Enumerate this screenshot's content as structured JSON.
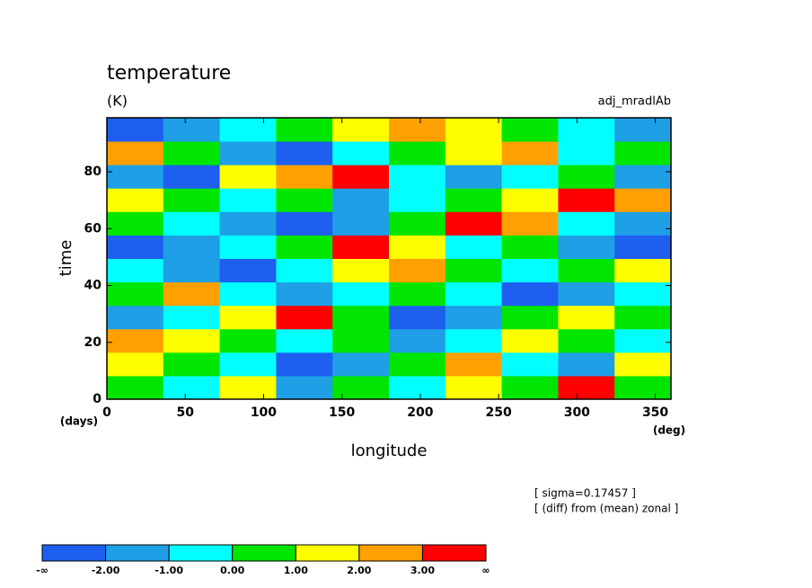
{
  "chart_data": {
    "type": "heatmap",
    "title": "temperature",
    "subtitle": "(K)",
    "annotation": "adj_mradlAb",
    "x_label": "longitude",
    "y_label": "time",
    "x_unit": "(deg)",
    "y_unit": "(days)",
    "notes": [
      "[ sigma=0.17457 ]",
      "[ (diff) from (mean) zonal ]"
    ],
    "xlim": [
      0,
      360
    ],
    "xticks": [
      0,
      50,
      100,
      150,
      200,
      250,
      300,
      350
    ],
    "ylim": [
      0,
      99
    ],
    "yticks": [
      0,
      20,
      40,
      60,
      80
    ],
    "colorbar": {
      "levels": [
        {
          "value": -2,
          "label": "-2.00"
        },
        {
          "value": -1,
          "label": "-1.00"
        },
        {
          "value": 0,
          "label": "0.00"
        },
        {
          "value": 1,
          "label": "1.00"
        },
        {
          "value": 2,
          "label": "2.00"
        },
        {
          "value": 3,
          "label": "3.00"
        }
      ],
      "edge_labels": [
        "-∞",
        "∞"
      ],
      "colors": [
        "#1e5ff0",
        "#1e9fe6",
        "#00ffff",
        "#00e600",
        "#ffff00",
        "#ffa000",
        "#ff0000"
      ]
    },
    "z": [
      [
        0.5,
        -0.5,
        1.5,
        -1.5,
        0.5,
        -0.5,
        1.5,
        0.5,
        3.5,
        0.5
      ],
      [
        1.5,
        0.5,
        -0.5,
        -2.5,
        -1.5,
        0.5,
        2.5,
        -0.5,
        -1.5,
        1.5
      ],
      [
        2.5,
        1.5,
        0.5,
        -0.5,
        0.5,
        -1.5,
        -0.5,
        1.5,
        0.5,
        -0.5
      ],
      [
        -1.5,
        -0.5,
        1.5,
        3.5,
        0.5,
        -2.5,
        -1.5,
        0.5,
        1.5,
        0.5
      ],
      [
        0.5,
        2.5,
        -0.5,
        -1.5,
        -0.5,
        0.5,
        -0.5,
        -2.5,
        -1.5,
        -0.5
      ],
      [
        -0.5,
        -1.5,
        -2.5,
        -0.5,
        1.5,
        2.5,
        0.5,
        -0.5,
        0.5,
        1.5
      ],
      [
        -2.5,
        -1.5,
        -0.5,
        0.5,
        3.5,
        1.5,
        -0.5,
        0.5,
        -1.5,
        -2.5
      ],
      [
        0.5,
        -0.5,
        -1.5,
        -2.5,
        -1.5,
        0.5,
        3.5,
        2.5,
        -0.5,
        -1.5
      ],
      [
        1.5,
        0.5,
        -0.5,
        0.5,
        -1.5,
        -0.5,
        0.5,
        1.5,
        3.5,
        2.5
      ],
      [
        -1.5,
        -2.5,
        1.5,
        2.5,
        3.5,
        -0.5,
        -1.5,
        -0.5,
        0.5,
        -1.5
      ],
      [
        2.5,
        0.5,
        -1.5,
        -2.5,
        -0.5,
        0.5,
        1.5,
        2.5,
        -0.5,
        0.5
      ],
      [
        -2.5,
        -1.5,
        -0.5,
        0.5,
        1.5,
        2.5,
        1.5,
        0.5,
        -0.5,
        -1.5
      ]
    ]
  }
}
